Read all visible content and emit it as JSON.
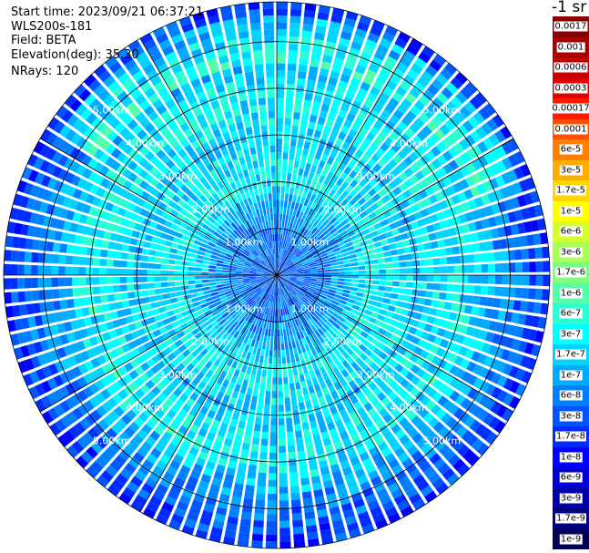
{
  "header": {
    "start_time": "Start time: 2023/09/21 06:37:21",
    "instrument": "WLS200s-181",
    "field": "Field: BETA",
    "elevation": "Elevation(deg): 35.30",
    "nrays": "NRays: 120"
  },
  "colorbar": {
    "unit_label": "-1 sr",
    "levels": [
      {
        "label": "0.0017",
        "color": "#8b0000"
      },
      {
        "label": "0.001",
        "color": "#a80000"
      },
      {
        "label": "0.0006",
        "color": "#c40000"
      },
      {
        "label": "0.0003",
        "color": "#e00000"
      },
      {
        "label": "0.00017",
        "color": "#ff1a00"
      },
      {
        "label": "0.0001",
        "color": "#ff5000"
      },
      {
        "label": "6e-5",
        "color": "#ff8000"
      },
      {
        "label": "3e-5",
        "color": "#ffae00"
      },
      {
        "label": "1.7e-5",
        "color": "#ffd800"
      },
      {
        "label": "1e-5",
        "color": "#ffff00"
      },
      {
        "label": "6e-6",
        "color": "#d4ff2b"
      },
      {
        "label": "3e-6",
        "color": "#a8ff55"
      },
      {
        "label": "1.7e-6",
        "color": "#7dff80"
      },
      {
        "label": "1e-6",
        "color": "#55ffaa"
      },
      {
        "label": "6e-7",
        "color": "#2bffd4"
      },
      {
        "label": "3e-7",
        "color": "#00ffff"
      },
      {
        "label": "1.7e-7",
        "color": "#00d4ff"
      },
      {
        "label": "1e-7",
        "color": "#00aaff"
      },
      {
        "label": "6e-8",
        "color": "#0080ff"
      },
      {
        "label": "3e-8",
        "color": "#0055ff"
      },
      {
        "label": "1.7e-8",
        "color": "#002bff"
      },
      {
        "label": "1e-8",
        "color": "#0000ff"
      },
      {
        "label": "6e-9",
        "color": "#0000d4"
      },
      {
        "label": "3e-9",
        "color": "#0000aa"
      },
      {
        "label": "1.7e-9",
        "color": "#000080"
      },
      {
        "label": "1e-9",
        "color": "#000055"
      }
    ]
  },
  "chart_data": {
    "type": "heatmap",
    "projection": "polar PPI",
    "field": "BETA",
    "elevation_deg": 35.3,
    "nrays": 120,
    "range_rings_km": [
      1.0,
      2.0,
      3.0,
      4.0,
      5.0
    ],
    "ring_label_text": [
      "1.00km",
      "2.00km",
      "3.00km",
      "4.00km",
      "5.00km"
    ],
    "max_range_km": 5.85,
    "spoke_angles_deg": [
      0,
      30,
      60,
      90,
      120,
      150,
      180,
      210,
      240,
      270,
      300,
      330
    ],
    "range_profile": [
      {
        "range_km": 0.0,
        "beta": "3e-8"
      },
      {
        "range_km": 1.0,
        "beta": "6e-8"
      },
      {
        "range_km": 1.5,
        "beta": "1e-7"
      },
      {
        "range_km": 2.0,
        "beta": "3e-7"
      },
      {
        "range_km": 3.0,
        "beta": "1.7e-7"
      },
      {
        "range_km": 4.0,
        "beta": "3e-7"
      },
      {
        "range_km": 5.0,
        "beta": "6e-8"
      },
      {
        "range_km": 5.85,
        "beta": "1.7e-8"
      }
    ],
    "color_scale": "log",
    "color_range": [
      "1e-9",
      "0.0017"
    ]
  }
}
